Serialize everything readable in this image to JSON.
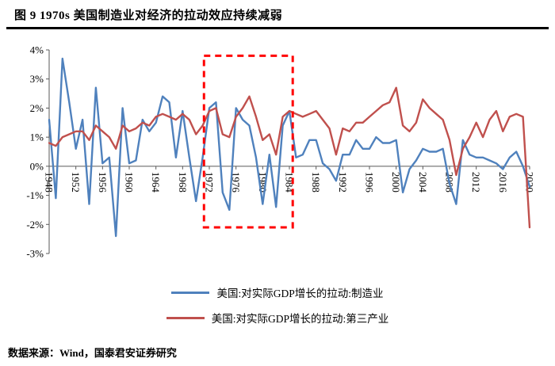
{
  "title": "图 9 1970s 美国制造业对经济的拉动效应持续减弱",
  "source": "数据来源：Wind，国泰君安证券研究",
  "colors": {
    "manufacturing_line": "#4f81bd",
    "tertiary_line": "#c0504d",
    "highlight_box": "#ff0000",
    "axis": "#595959",
    "title_rule": "#000000"
  },
  "legend": [
    {
      "id": "manufacturing",
      "label": "美国:对实际GDP增长的拉动:制造业",
      "color": "#4f81bd"
    },
    {
      "id": "tertiary",
      "label": "美国:对实际GDP增长的拉动:第三产业",
      "color": "#c0504d"
    }
  ],
  "chart_data": {
    "type": "line",
    "title": "图 9 1970s 美国制造业对经济的拉动效应持续减弱",
    "xlabel": "",
    "ylabel": "",
    "ylim": [
      -3,
      4
    ],
    "grid": false,
    "legend_position": "bottom-center",
    "x": [
      1948,
      1949,
      1950,
      1951,
      1952,
      1953,
      1954,
      1955,
      1956,
      1957,
      1958,
      1959,
      1960,
      1961,
      1962,
      1963,
      1964,
      1965,
      1966,
      1967,
      1968,
      1969,
      1970,
      1971,
      1972,
      1973,
      1974,
      1975,
      1976,
      1977,
      1978,
      1979,
      1980,
      1981,
      1982,
      1983,
      1984,
      1985,
      1986,
      1987,
      1988,
      1989,
      1990,
      1991,
      1992,
      1993,
      1994,
      1995,
      1996,
      1997,
      1998,
      1999,
      2000,
      2001,
      2002,
      2003,
      2004,
      2005,
      2006,
      2007,
      2008,
      2009,
      2010,
      2011,
      2012,
      2013,
      2014,
      2015,
      2016,
      2017,
      2018,
      2019,
      2020
    ],
    "x_tick_labels": [
      "1948",
      "1952",
      "1956",
      "1960",
      "1964",
      "1968",
      "1972",
      "1976",
      "1980",
      "1984",
      "1988",
      "1992",
      "1996",
      "2000",
      "2004",
      "2008",
      "2012",
      "2016",
      "2020"
    ],
    "y_ticks": [
      4,
      3,
      2,
      1,
      0,
      -1,
      -2,
      -3
    ],
    "y_tick_labels": [
      "4%",
      "3%",
      "2%",
      "1%",
      "0%",
      "-1%",
      "-2%",
      "-3%"
    ],
    "series": [
      {
        "id": "manufacturing",
        "name": "美国:对实际GDP增长的拉动:制造业",
        "color": "#4f81bd",
        "values": [
          1.6,
          -1.1,
          3.7,
          2.2,
          0.6,
          1.6,
          -1.3,
          2.7,
          0.1,
          0.3,
          -2.4,
          2.0,
          0.1,
          0.2,
          1.6,
          1.2,
          1.5,
          2.4,
          2.2,
          0.3,
          1.9,
          0.3,
          -1.2,
          0.3,
          2.0,
          2.2,
          -0.9,
          -1.5,
          2.0,
          1.6,
          1.4,
          0.3,
          -1.3,
          0.4,
          -1.4,
          1.4,
          1.9,
          0.3,
          0.4,
          0.9,
          0.9,
          0.1,
          -0.1,
          -0.5,
          0.4,
          0.4,
          0.9,
          0.6,
          0.6,
          1.0,
          0.8,
          0.8,
          0.9,
          -0.9,
          -0.1,
          0.2,
          0.6,
          0.5,
          0.5,
          0.6,
          -0.6,
          -1.3,
          0.9,
          0.4,
          0.3,
          0.3,
          0.2,
          0.1,
          -0.1,
          0.3,
          0.5,
          0.0,
          -0.7
        ]
      },
      {
        "id": "tertiary",
        "name": "美国:对实际GDP增长的拉动:第三产业",
        "color": "#c0504d",
        "values": [
          0.8,
          0.7,
          1.0,
          1.1,
          1.2,
          1.2,
          0.9,
          1.4,
          1.2,
          1.0,
          0.6,
          1.4,
          1.2,
          1.3,
          1.5,
          1.4,
          1.7,
          1.8,
          1.7,
          1.6,
          1.8,
          1.6,
          1.1,
          1.4,
          1.9,
          2.0,
          1.1,
          1.0,
          1.7,
          2.0,
          2.4,
          1.7,
          0.9,
          1.1,
          0.4,
          1.7,
          1.9,
          1.8,
          1.7,
          1.8,
          1.9,
          1.6,
          1.3,
          0.4,
          1.3,
          1.2,
          1.5,
          1.5,
          1.7,
          1.9,
          2.1,
          2.2,
          2.7,
          1.4,
          1.2,
          1.5,
          2.3,
          2.0,
          1.8,
          1.6,
          0.9,
          -0.3,
          0.6,
          1.0,
          1.5,
          1.0,
          1.6,
          1.9,
          1.2,
          1.7,
          1.8,
          1.7,
          -2.1
        ]
      }
    ],
    "highlight_box": {
      "x_start": 1971.2,
      "x_end": 1984.5,
      "y_top": 3.8,
      "y_bottom": -2.1,
      "color": "#ff0000",
      "line_style": "dashed"
    }
  }
}
